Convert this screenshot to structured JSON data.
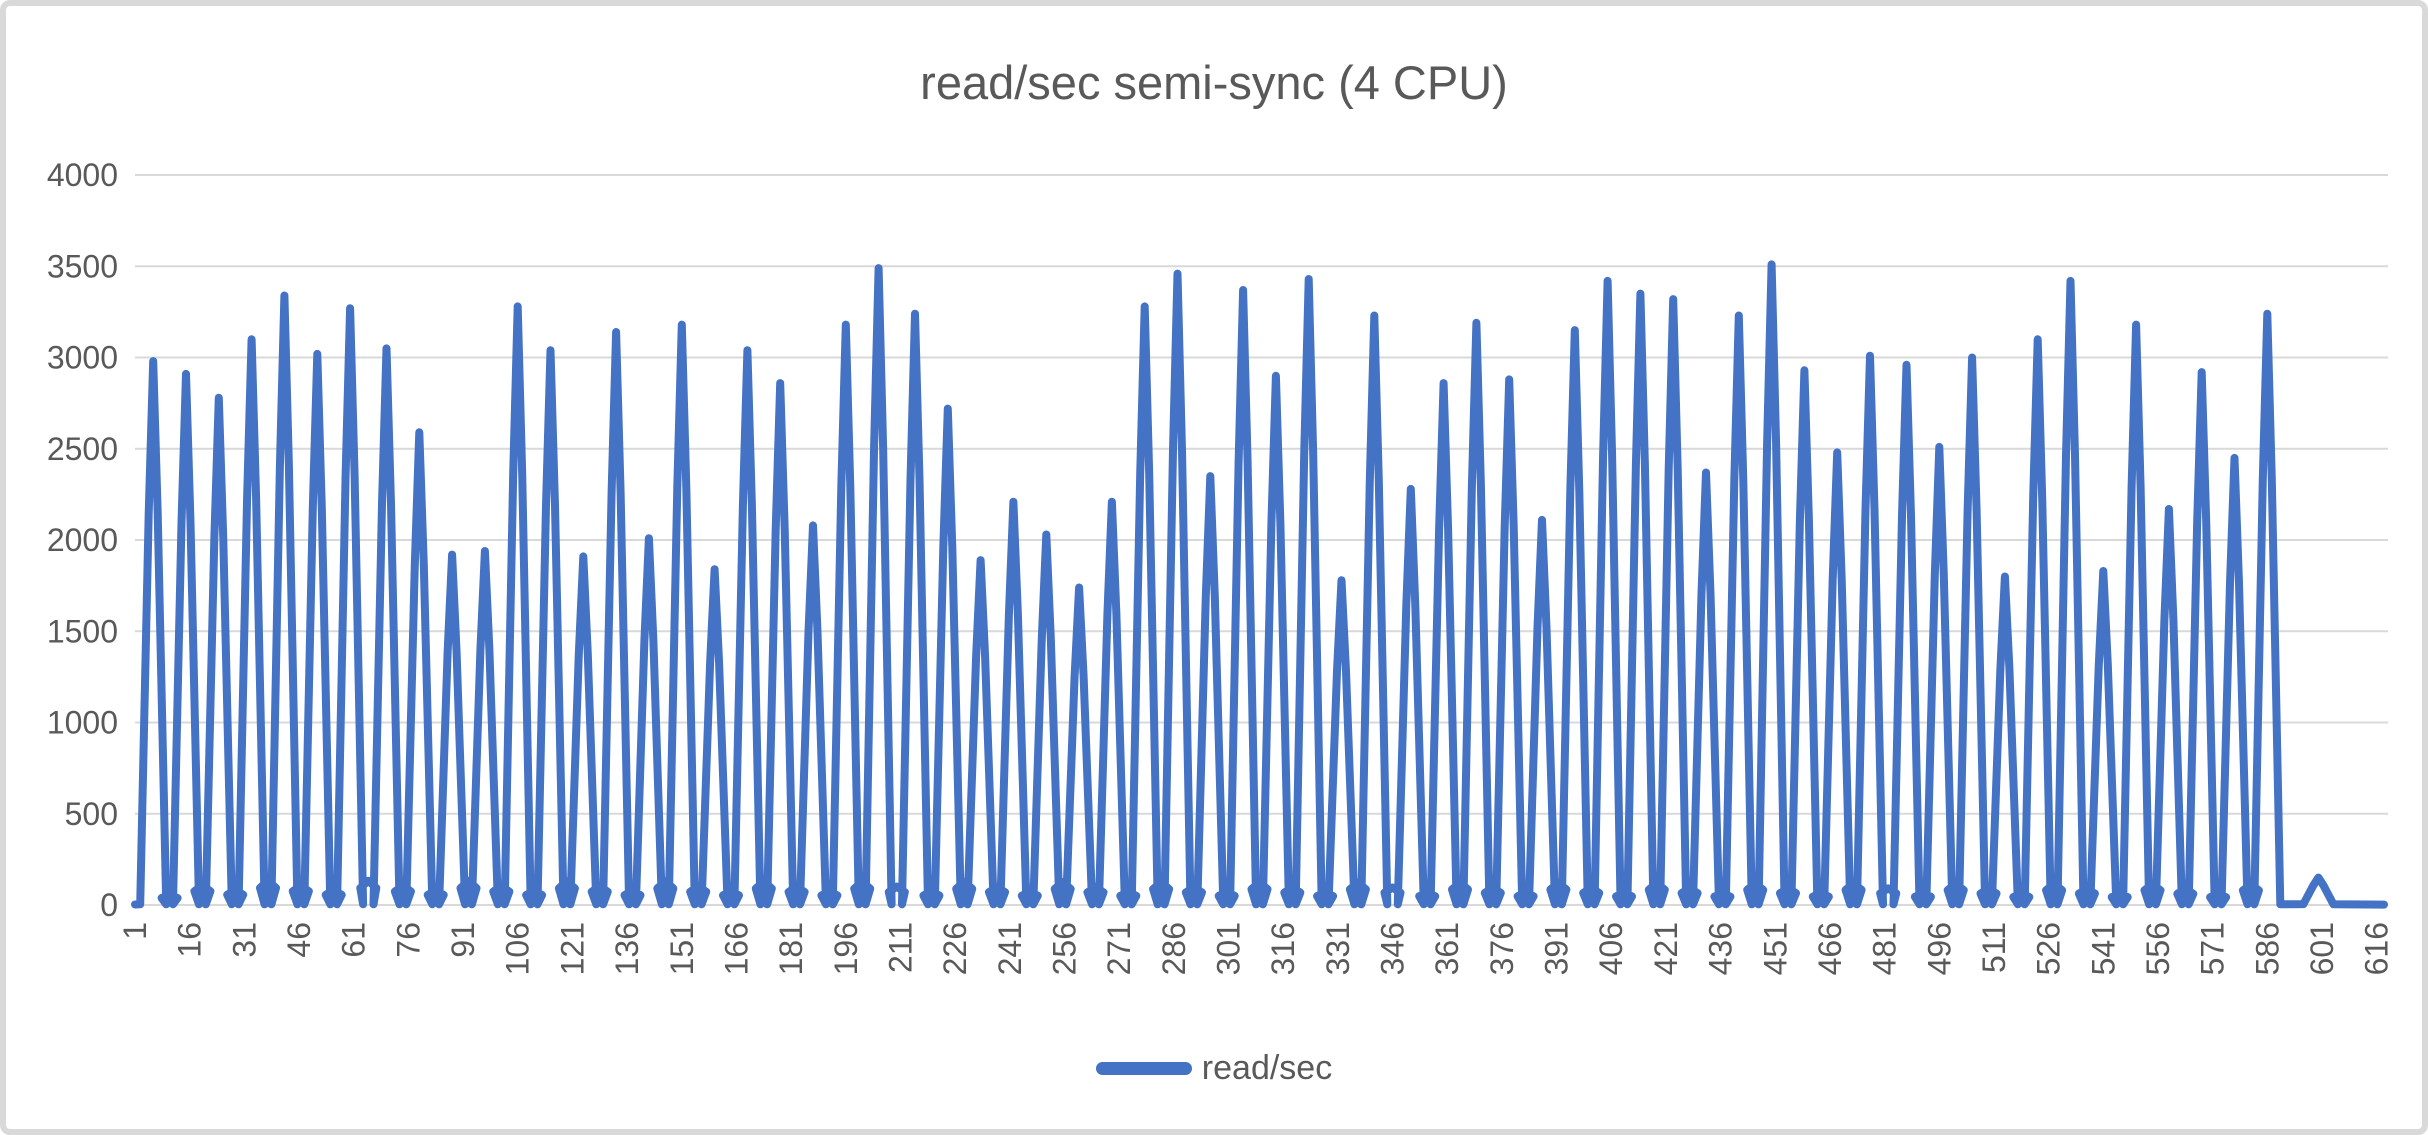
{
  "frame": {
    "background": "#FFFFFF",
    "border_color": "#D9D9D9"
  },
  "chart_data": {
    "type": "line",
    "title": "read/sec semi-sync (4 CPU)",
    "text_color": "#595959",
    "gridline_color": "#D9D9D9",
    "grid": true,
    "legend": {
      "position": "bottom",
      "entries": [
        {
          "label": "read/sec",
          "color": "#4472C4"
        }
      ]
    },
    "x_axis": {
      "first": 1,
      "step": 15,
      "last": 616,
      "label_rotation": -90,
      "ticks": [
        1,
        16,
        31,
        46,
        61,
        76,
        91,
        106,
        121,
        136,
        151,
        166,
        181,
        196,
        211,
        226,
        241,
        256,
        271,
        286,
        301,
        316,
        331,
        346,
        361,
        376,
        391,
        406,
        421,
        436,
        451,
        466,
        481,
        496,
        511,
        526,
        541,
        556,
        571,
        586,
        601,
        616
      ]
    },
    "y_axis": {
      "min": 0,
      "max": 4000,
      "step": 500,
      "ticks": [
        0,
        500,
        1000,
        1500,
        2000,
        2500,
        3000,
        3500,
        4000
      ]
    },
    "series": [
      {
        "name": "read/sec",
        "color": "#4472C4",
        "stroke_width": 8,
        "pattern": "periodic narrow spikes that return to ~0 between peaks, with small baseline bumps between spikes",
        "spikes": [
          [
            6,
            2980
          ],
          [
            15,
            2910
          ],
          [
            24,
            2780
          ],
          [
            33,
            3100
          ],
          [
            42,
            3340
          ],
          [
            51,
            3020
          ],
          [
            60,
            3270
          ],
          [
            70,
            3050
          ],
          [
            79,
            2590
          ],
          [
            88,
            1920
          ],
          [
            97,
            1940
          ],
          [
            106,
            3280
          ],
          [
            115,
            3040
          ],
          [
            124,
            1910
          ],
          [
            133,
            3140
          ],
          [
            142,
            2010
          ],
          [
            151,
            3180
          ],
          [
            160,
            1840
          ],
          [
            169,
            3040
          ],
          [
            178,
            2860
          ],
          [
            187,
            2080
          ],
          [
            196,
            3180
          ],
          [
            205,
            3490
          ],
          [
            215,
            3240
          ],
          [
            224,
            2720
          ],
          [
            233,
            1890
          ],
          [
            242,
            2210
          ],
          [
            251,
            2030
          ],
          [
            260,
            1740
          ],
          [
            269,
            2210
          ],
          [
            278,
            3280
          ],
          [
            287,
            3460
          ],
          [
            296,
            2350
          ],
          [
            305,
            3370
          ],
          [
            314,
            2900
          ],
          [
            323,
            3430
          ],
          [
            332,
            1780
          ],
          [
            341,
            3230
          ],
          [
            351,
            2280
          ],
          [
            360,
            2860
          ],
          [
            369,
            3190
          ],
          [
            378,
            2880
          ],
          [
            387,
            2110
          ],
          [
            396,
            3150
          ],
          [
            405,
            3420
          ],
          [
            414,
            3350
          ],
          [
            423,
            3320
          ],
          [
            432,
            2370
          ],
          [
            441,
            3230
          ],
          [
            450,
            3510
          ],
          [
            459,
            2930
          ],
          [
            468,
            2480
          ],
          [
            477,
            3010
          ],
          [
            487,
            2960
          ],
          [
            496,
            2510
          ],
          [
            505,
            3000
          ],
          [
            514,
            1800
          ],
          [
            523,
            3100
          ],
          [
            532,
            3420
          ],
          [
            541,
            1830
          ],
          [
            550,
            3180
          ],
          [
            559,
            2170
          ],
          [
            568,
            2920
          ],
          [
            577,
            2450
          ],
          [
            586,
            3240
          ]
        ],
        "baseline_bumps": {
          "min": 55,
          "max": 135
        },
        "tail": {
          "bump_x": 600,
          "bump_value": 150,
          "end_x": 618,
          "end_value": 0
        }
      }
    ]
  }
}
